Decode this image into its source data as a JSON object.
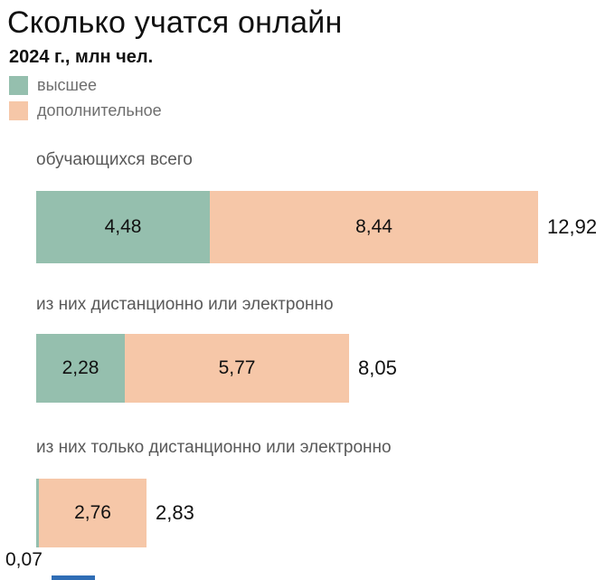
{
  "chart_data": {
    "type": "bar",
    "orientation": "horizontal",
    "stacked": true,
    "title": "Сколько учатся онлайн",
    "subtitle": "2024 г., млн чел.",
    "unit": "млн чел.",
    "xmax": 12.92,
    "legend": [
      {
        "label": "высшее",
        "color": "#95bfae"
      },
      {
        "label": "дополнительное",
        "color": "#f6c7a8"
      }
    ],
    "categories": [
      "обучающихся всего",
      "из них дистанционно или электронно",
      "из них только дистанционно или электронно"
    ],
    "series": [
      {
        "name": "высшее",
        "values": [
          4.48,
          2.28,
          0.07
        ]
      },
      {
        "name": "дополнительное",
        "values": [
          8.44,
          5.77,
          2.76
        ]
      }
    ],
    "rows": [
      {
        "label": "обучающихся всего",
        "v1": 4.48,
        "v2": 8.44,
        "label1": "4,48",
        "label2": "8,44",
        "total": 12.92,
        "total_label": "12,92"
      },
      {
        "label": "из них дистанционно или электронно",
        "v1": 2.28,
        "v2": 5.77,
        "label1": "2,28",
        "label2": "5,77",
        "total": 8.05,
        "total_label": "8,05"
      },
      {
        "label": "из них только дистанционно или электронно",
        "v1": 0.07,
        "v2": 2.76,
        "label1": "0,07",
        "label2": "2,76",
        "total": 2.83,
        "total_label": "2,83"
      }
    ]
  }
}
